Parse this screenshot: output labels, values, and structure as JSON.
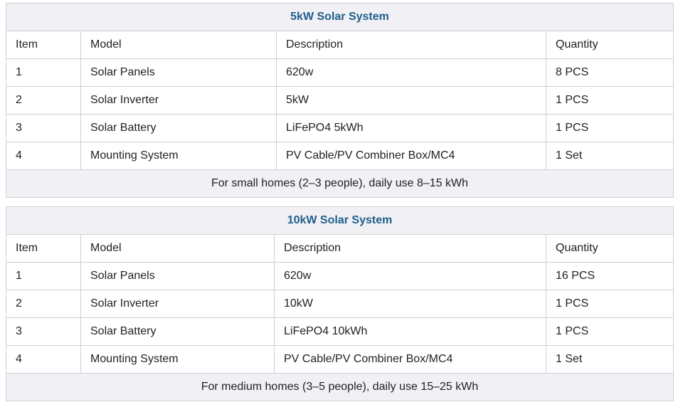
{
  "tables": [
    {
      "title": "5kW Solar System",
      "columns": [
        "Item",
        "Model",
        "Description",
        "Quantity"
      ],
      "rows": [
        [
          "1",
          "Solar Panels",
          "620w",
          "8 PCS"
        ],
        [
          "2",
          "Solar Inverter",
          "5kW",
          "1 PCS"
        ],
        [
          "3",
          "Solar Battery",
          "LiFePO4 5kWh",
          "1 PCS"
        ],
        [
          "4",
          "Mounting System",
          "PV Cable/PV Combiner Box/MC4",
          "1 Set"
        ]
      ],
      "footer": "For small homes (2–3 people), daily use 8–15 kWh"
    },
    {
      "title": "10kW Solar System",
      "columns": [
        "Item",
        "Model",
        "Description",
        "Quantity"
      ],
      "rows": [
        [
          "1",
          "Solar Panels",
          "620w",
          "16 PCS"
        ],
        [
          "2",
          "Solar Inverter",
          "10kW",
          "1 PCS"
        ],
        [
          "3",
          "Solar Battery",
          "LiFePO4 10kWh",
          "1 PCS"
        ],
        [
          "4",
          "Mounting System",
          "PV Cable/PV Combiner Box/MC4",
          "1 Set"
        ]
      ],
      "footer": "For medium homes (3–5 people), daily use 15–25 kWh"
    }
  ]
}
